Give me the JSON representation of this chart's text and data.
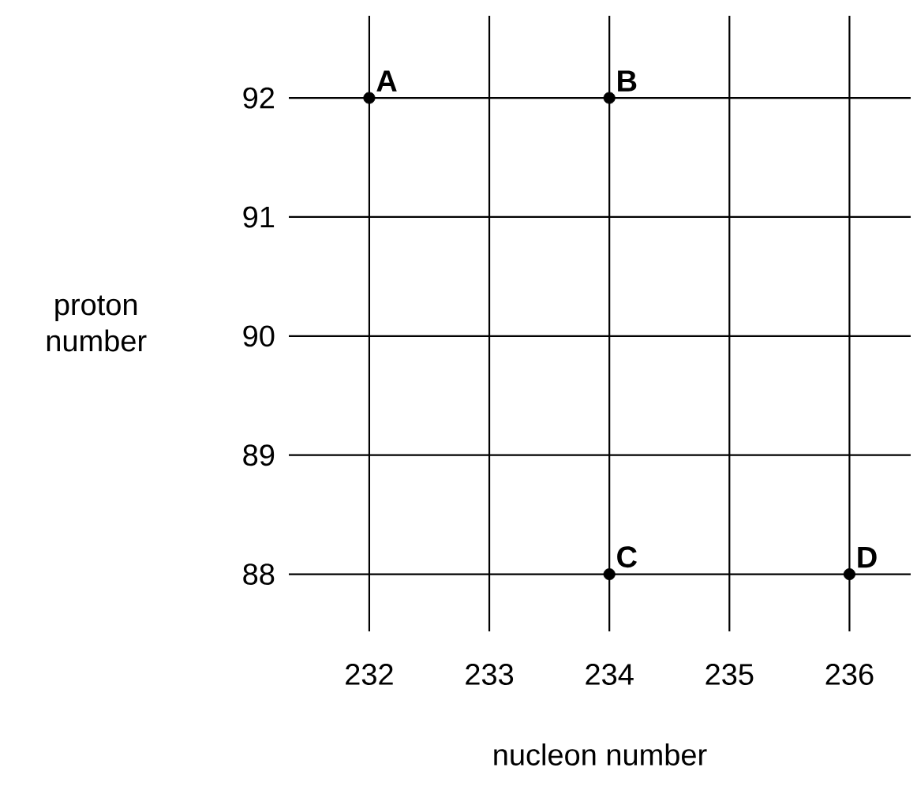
{
  "chart_data": {
    "type": "scatter",
    "xlabel": "nucleon number",
    "ylabel": "proton number",
    "x": [
      232,
      234,
      234,
      236
    ],
    "values": [
      92,
      92,
      88,
      88
    ],
    "color": "#000000",
    "marker": "circle",
    "grid": true,
    "xlim": [
      231.33,
      236.51
    ],
    "ylim": [
      87.52,
      92.69
    ],
    "xticks": [
      232,
      233,
      234,
      235,
      236
    ],
    "yticks": [
      88,
      89,
      90,
      91,
      92
    ],
    "annotations": [
      {
        "text": "A",
        "x": 232,
        "y": 92
      },
      {
        "text": "B",
        "x": 234,
        "y": 92
      },
      {
        "text": "C",
        "x": 234,
        "y": 88
      },
      {
        "text": "D",
        "x": 236,
        "y": 88
      }
    ]
  }
}
